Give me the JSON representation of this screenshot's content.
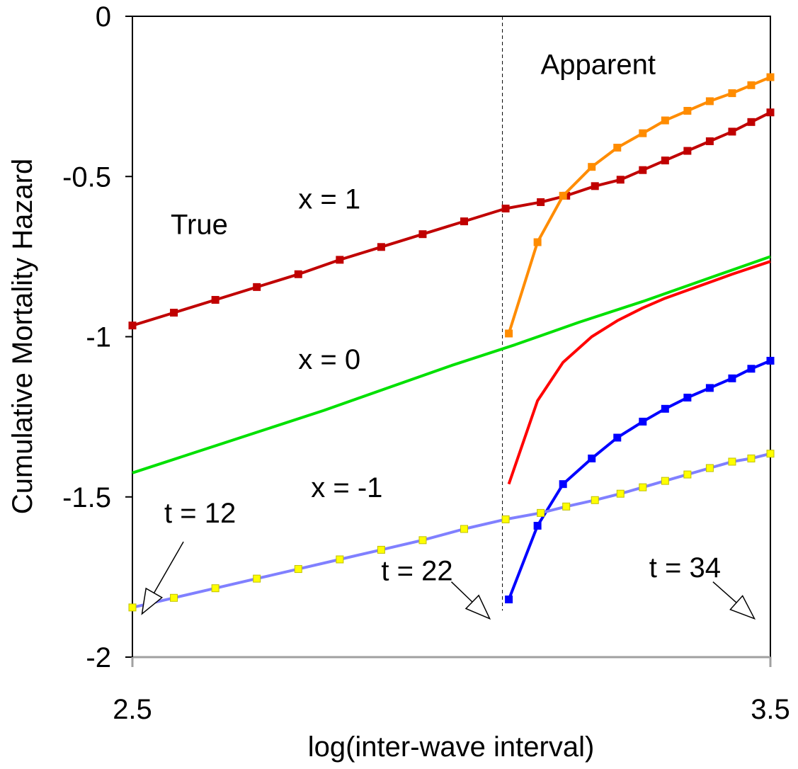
{
  "chart_data": {
    "type": "line",
    "title": "",
    "xlabel": "log(inter-wave interval)",
    "ylabel": "Cumulative Mortality Hazard",
    "xlim": [
      2.5,
      3.5
    ],
    "ylim": [
      -2,
      0
    ],
    "x_ticks": [
      2.5,
      3.5
    ],
    "x_tick_labels": [
      "2.5",
      "3.5"
    ],
    "y_ticks": [
      0,
      -0.5,
      -1,
      -1.5,
      -2
    ],
    "y_tick_labels": [
      "0",
      "-0.5",
      "-1",
      "-1.5",
      "-2"
    ],
    "grid": false,
    "legend": "none",
    "reference_line": {
      "x": 3.08,
      "style": "dashed",
      "color": "#000000"
    },
    "series": [
      {
        "color": "#c00000",
        "markers": "square",
        "marker_color": "#c00000",
        "x": [
          2.5,
          2.565,
          2.63,
          2.695,
          2.76,
          2.825,
          2.89,
          2.955,
          3.02,
          3.085,
          3.14,
          3.18,
          3.225,
          3.265,
          3.3,
          3.335,
          3.37,
          3.405,
          3.44,
          3.47,
          3.5
        ],
        "y": [
          -0.965,
          -0.925,
          -0.885,
          -0.845,
          -0.805,
          -0.76,
          -0.72,
          -0.68,
          -0.64,
          -0.6,
          -0.58,
          -0.56,
          -0.53,
          -0.51,
          -0.48,
          -0.45,
          -0.42,
          -0.39,
          -0.36,
          -0.33,
          -0.3
        ]
      },
      {
        "color": "#ff8c00",
        "markers": "square",
        "marker_color": "#ff8c00",
        "x": [
          3.09,
          3.135,
          3.175,
          3.22,
          3.26,
          3.3,
          3.335,
          3.37,
          3.405,
          3.44,
          3.47,
          3.5
        ],
        "y": [
          -0.99,
          -0.705,
          -0.56,
          -0.47,
          -0.41,
          -0.365,
          -0.325,
          -0.295,
          -0.265,
          -0.24,
          -0.215,
          -0.19
        ]
      },
      {
        "color": "#ff0000",
        "markers": "none",
        "x": [
          3.09,
          3.135,
          3.175,
          3.22,
          3.26,
          3.3,
          3.335,
          3.37,
          3.405,
          3.44,
          3.47,
          3.5
        ],
        "y": [
          -1.46,
          -1.2,
          -1.08,
          -1.0,
          -0.95,
          -0.91,
          -0.88,
          -0.855,
          -0.83,
          -0.805,
          -0.785,
          -0.765
        ]
      },
      {
        "color": "#00e000",
        "markers": "none",
        "x": [
          2.5,
          2.6,
          2.7,
          2.8,
          2.9,
          3.0,
          3.1,
          3.2,
          3.3,
          3.4,
          3.5
        ],
        "y": [
          -1.425,
          -1.36,
          -1.295,
          -1.23,
          -1.16,
          -1.09,
          -1.025,
          -0.955,
          -0.89,
          -0.82,
          -0.75
        ]
      },
      {
        "color": "#0000ff",
        "markers": "square",
        "marker_color": "#0000ff",
        "x": [
          3.09,
          3.135,
          3.175,
          3.22,
          3.26,
          3.3,
          3.335,
          3.37,
          3.405,
          3.44,
          3.47,
          3.5
        ],
        "y": [
          -1.82,
          -1.59,
          -1.46,
          -1.38,
          -1.315,
          -1.265,
          -1.225,
          -1.19,
          -1.16,
          -1.13,
          -1.1,
          -1.075
        ]
      },
      {
        "color": "#8080ff",
        "markers": "square",
        "marker_color": "#ffff00",
        "x": [
          2.5,
          2.565,
          2.63,
          2.695,
          2.76,
          2.825,
          2.89,
          2.955,
          3.02,
          3.085,
          3.14,
          3.18,
          3.225,
          3.265,
          3.3,
          3.335,
          3.37,
          3.405,
          3.44,
          3.47,
          3.5
        ],
        "y": [
          -1.845,
          -1.815,
          -1.785,
          -1.755,
          -1.725,
          -1.695,
          -1.665,
          -1.635,
          -1.6,
          -1.57,
          -1.55,
          -1.53,
          -1.51,
          -1.49,
          -1.47,
          -1.45,
          -1.43,
          -1.41,
          -1.39,
          -1.38,
          -1.365
        ]
      }
    ],
    "annotations": [
      {
        "text": "Apparent",
        "x": 3.14,
        "y": -0.18
      },
      {
        "text": "True",
        "x": 2.56,
        "y": -0.68
      },
      {
        "text": "x = 1",
        "x": 2.76,
        "y": -0.6
      },
      {
        "text": "x = 0",
        "x": 2.76,
        "y": -1.1
      },
      {
        "text": "x = -1",
        "x": 2.78,
        "y": -1.5
      },
      {
        "text": "t = 12",
        "x": 2.55,
        "y": -1.58
      },
      {
        "text": "t = 22",
        "x": 2.89,
        "y": -1.76
      },
      {
        "text": "t = 34",
        "x": 3.31,
        "y": -1.75
      }
    ],
    "arrows": [
      {
        "label": "t = 12",
        "from": [
          2.58,
          -1.64
        ],
        "to": [
          2.515,
          -1.865
        ]
      },
      {
        "label": "t = 22",
        "from": [
          3.0,
          -1.765
        ],
        "to": [
          3.06,
          -1.88
        ]
      },
      {
        "label": "t = 34",
        "from": [
          3.41,
          -1.765
        ],
        "to": [
          3.475,
          -1.88
        ]
      }
    ]
  }
}
